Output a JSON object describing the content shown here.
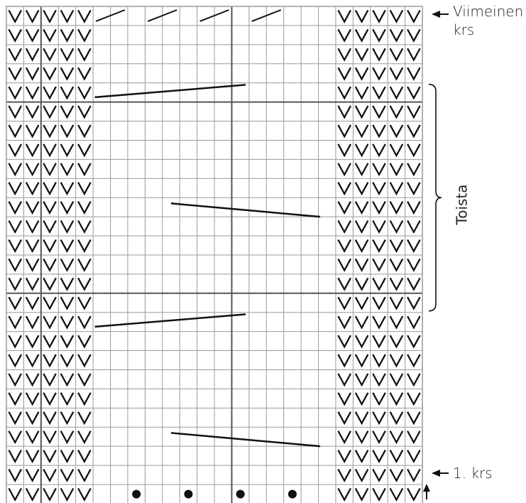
{
  "labels": {
    "last_row_line1": "Viimeinen",
    "last_row_line2": "krs",
    "first_row": "1. krs",
    "repeat": "Toista"
  },
  "grid": {
    "columns": 24,
    "rows": 26,
    "left_border_columns": 5,
    "right_border_columns": 5
  },
  "symbols": {
    "knit": "V",
    "dot": "●"
  },
  "colors": {
    "grid_line": "#999999",
    "major_line": "#555555",
    "ink": "#111111"
  },
  "icons": [
    "arrow-left-icon",
    "arrow-up-icon",
    "bracket-icon"
  ]
}
